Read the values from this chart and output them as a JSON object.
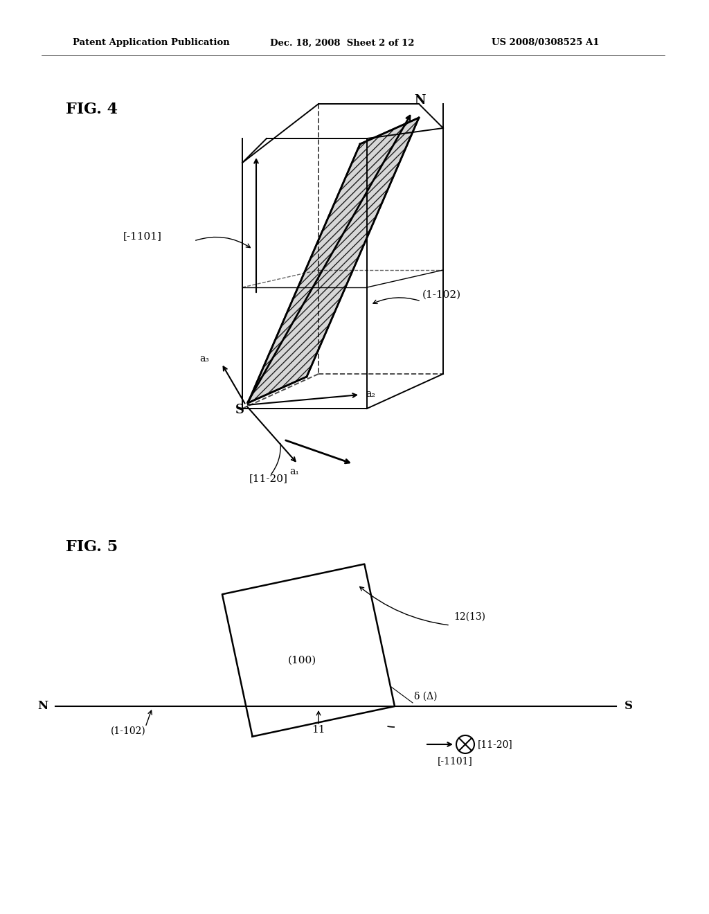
{
  "bg_color": "#ffffff",
  "header_text": "Patent Application Publication",
  "header_date": "Dec. 18, 2008  Sheet 2 of 12",
  "header_patent": "US 2008/0308525 A1",
  "fig4_label": "FIG. 4",
  "fig5_label": "FIG. 5",
  "label_N": "N",
  "label_S": "S",
  "label_a1": "a₁",
  "label_a2": "a₂",
  "label_a3": "a₃",
  "label_1102": "(1-102)",
  "label_1101": "[-1101]",
  "label_1120": "[11-20]",
  "label_100": "(100)",
  "label_1102b": "(1-102)",
  "label_1101b": "[-1101]",
  "label_1120b": "[11-20]",
  "label_12_13": "12(13)",
  "label_11": "11",
  "label_delta": "δ (Δ)"
}
